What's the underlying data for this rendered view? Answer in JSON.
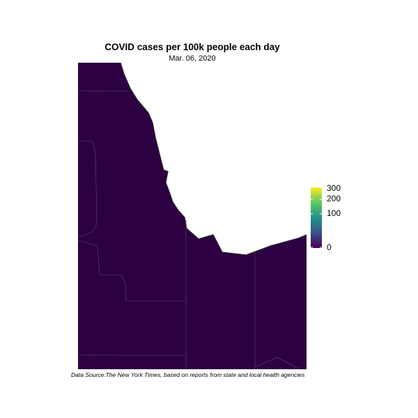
{
  "title": "COVID cases per 100k people each day",
  "date": "Mar. 06, 2020",
  "caption": "Data Source:The New York Times, based on reports from state and local health agencies",
  "legend": {
    "labels": [
      "300",
      "200",
      "100",
      "0"
    ],
    "values": [
      300,
      200,
      100,
      0
    ],
    "colors": [
      "#fde725",
      "#5ec962",
      "#21918c",
      "#3b528b",
      "#440154"
    ]
  },
  "map": {
    "fill_color": "#2d0042",
    "border_color": "#555555",
    "county_value": 0
  }
}
